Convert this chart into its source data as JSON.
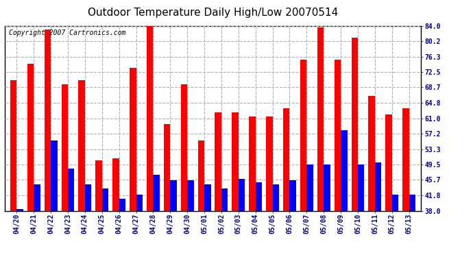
{
  "title": "Outdoor Temperature Daily High/Low 20070514",
  "copyright": "Copyright 2007 Cartronics.com",
  "dates": [
    "04/20",
    "04/21",
    "04/22",
    "04/23",
    "04/24",
    "04/25",
    "04/26",
    "04/27",
    "04/28",
    "04/29",
    "04/30",
    "05/01",
    "05/02",
    "05/03",
    "05/04",
    "05/05",
    "05/06",
    "05/07",
    "05/08",
    "05/09",
    "05/10",
    "05/11",
    "05/12",
    "05/13"
  ],
  "highs": [
    70.5,
    74.5,
    83.0,
    69.5,
    70.5,
    50.5,
    51.0,
    73.5,
    84.5,
    59.5,
    69.5,
    55.5,
    62.5,
    62.5,
    61.5,
    61.5,
    63.5,
    75.5,
    83.5,
    75.5,
    81.0,
    66.5,
    62.0,
    63.5
  ],
  "lows": [
    38.5,
    44.5,
    55.5,
    48.5,
    44.5,
    43.5,
    41.0,
    42.0,
    47.0,
    45.5,
    45.5,
    44.5,
    43.5,
    46.0,
    45.0,
    44.5,
    45.5,
    49.5,
    49.5,
    58.0,
    49.5,
    50.0,
    42.0,
    42.0
  ],
  "high_color": "#ff0000",
  "low_color": "#0000ff",
  "bg_color": "#ffffff",
  "plot_bg": "#ffffff",
  "yticks": [
    38.0,
    41.8,
    45.7,
    49.5,
    53.3,
    57.2,
    61.0,
    64.8,
    68.7,
    72.5,
    76.3,
    80.2,
    84.0
  ],
  "ymin": 38.0,
  "ymax": 84.0,
  "grid_color": "#b0b0b0",
  "title_fontsize": 11,
  "copyright_fontsize": 7,
  "tick_fontsize": 7,
  "bar_width": 0.38
}
